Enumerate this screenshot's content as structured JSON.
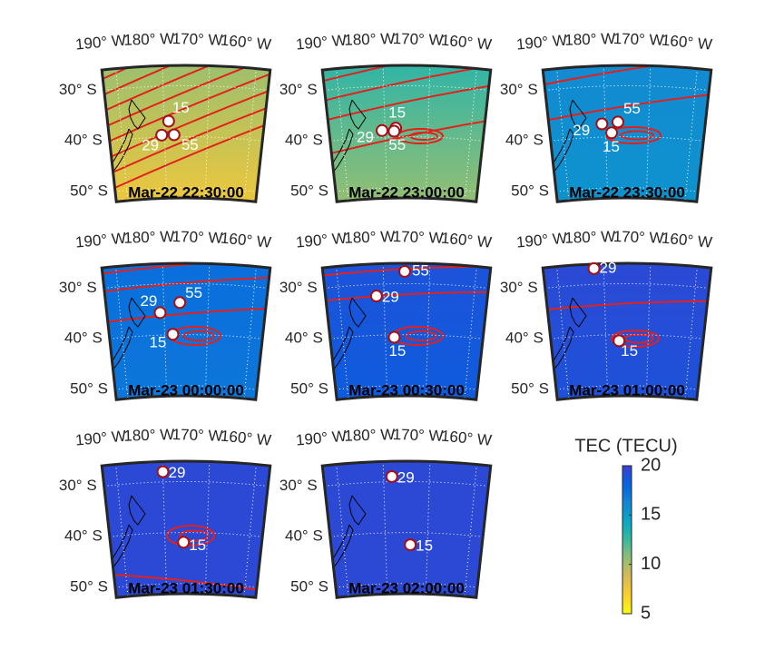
{
  "maps": {
    "lon_ticks": [
      {
        "value": 190,
        "label": "190° W"
      },
      {
        "value": 180,
        "label": "180° W"
      },
      {
        "value": 170,
        "label": "170° W"
      },
      {
        "value": 160,
        "label": "160° W"
      }
    ],
    "lat_ticks": [
      {
        "value": 30,
        "label": "30° S"
      },
      {
        "value": 40,
        "label": "40° S"
      },
      {
        "value": 50,
        "label": "50° S"
      }
    ],
    "lon_lim": [
      193,
      157
    ],
    "lat_lim": [
      26,
      52
    ],
    "panels": [
      {
        "title": "Mar-22 22:30:00",
        "tec": [
          10.5,
          7.5
        ],
        "points": [
          {
            "label": "15",
            "lon": 179,
            "lat": 36.9
          },
          {
            "label": "29",
            "lon": 180.7,
            "lat": 39.6
          },
          {
            "label": "55",
            "lon": 177.8,
            "lat": 39.6
          }
        ]
      },
      {
        "title": "Mar-22 23:00:00",
        "tec": [
          13,
          10.5
        ],
        "points": [
          {
            "label": "29",
            "lon": 180.7,
            "lat": 38.7
          },
          {
            "label": "15",
            "lon": 177.5,
            "lat": 38.3
          },
          {
            "label": "55",
            "lon": 177.9,
            "lat": 38.9
          }
        ]
      },
      {
        "title": "Mar-22 23:30:00",
        "tec": [
          16,
          15.5
        ],
        "points": [
          {
            "label": "29",
            "lon": 180.8,
            "lat": 37.4
          },
          {
            "label": "55",
            "lon": 177.1,
            "lat": 37.1
          },
          {
            "label": "15",
            "lon": 178.6,
            "lat": 39.2
          }
        ]
      },
      {
        "title": "Mar-23 00:00:00",
        "tec": [
          17.5,
          17
        ],
        "points": [
          {
            "label": "29",
            "lon": 180.9,
            "lat": 35.6
          },
          {
            "label": "55",
            "lon": 176.4,
            "lat": 33.7
          },
          {
            "label": "15",
            "lon": 178.1,
            "lat": 39.9
          }
        ]
      },
      {
        "title": "Mar-23 00:30:00",
        "tec": [
          19,
          18.5
        ],
        "points": [
          {
            "label": "55",
            "lon": 175.4,
            "lat": 27.6
          },
          {
            "label": "29",
            "lon": 181.7,
            "lat": 32.3
          },
          {
            "label": "15",
            "lon": 177.9,
            "lat": 40.5
          }
        ]
      },
      {
        "title": "Mar-23 01:00:00",
        "tec": [
          19.5,
          19
        ],
        "points": [
          {
            "label": "29",
            "lon": 182.1,
            "lat": 26.9
          },
          {
            "label": "15",
            "lon": 176.9,
            "lat": 41.2
          }
        ]
      },
      {
        "title": "Mar-23 01:30:00",
        "tec": [
          19.5,
          19.5
        ],
        "points": [
          {
            "label": "29",
            "lon": 180,
            "lat": 28
          },
          {
            "label": "15",
            "lon": 175.6,
            "lat": 41.9
          }
        ]
      },
      {
        "title": "Mar-23 02:00:00",
        "tec": [
          19.5,
          19.5
        ],
        "points": [
          {
            "label": "29",
            "lon": 178.2,
            "lat": 29
          },
          {
            "label": "15",
            "lon": 174.1,
            "lat": 42.4
          }
        ]
      }
    ]
  },
  "colorbar": {
    "title": "TEC (TECU)",
    "lim": [
      5,
      20
    ],
    "ticks": [
      5,
      10,
      15,
      20
    ]
  }
}
